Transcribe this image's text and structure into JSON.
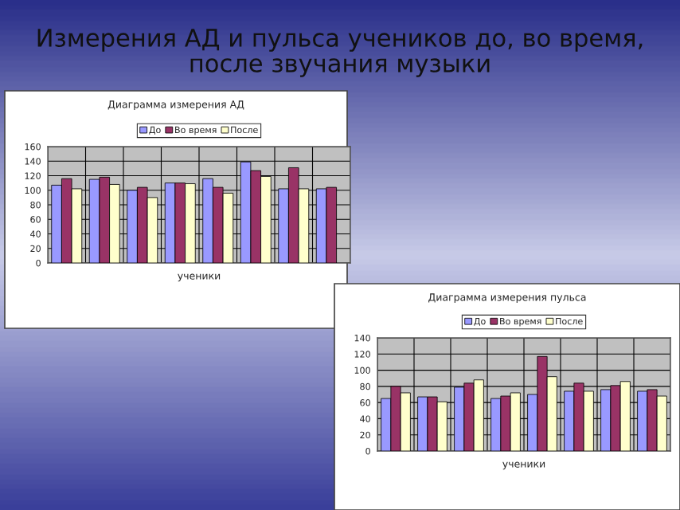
{
  "chart_data": [
    {
      "type": "bar",
      "title": "Диаграмма измерения АД",
      "xlabel": "ученики",
      "annotations": [
        "Измерения АД и пульса учеников до, во время,\nпосле звучания музыки"
      ],
      "categories": [
        null,
        null,
        null,
        null,
        null,
        null,
        null,
        null
      ],
      "series": [
        {
          "name": "До",
          "color": "#9999ff",
          "values": [
            107,
            115,
            100,
            110,
            116,
            139,
            102,
            102
          ]
        },
        {
          "name": "Во время",
          "color": "#993366",
          "values": [
            116,
            118,
            104,
            110,
            104,
            127,
            131,
            104
          ]
        },
        {
          "name": "После",
          "color": "#ffffcc",
          "values": [
            102,
            108,
            90,
            109,
            96,
            119,
            102,
            null
          ]
        }
      ],
      "ylim": [
        0,
        160
      ],
      "yticks": [
        0,
        20,
        40,
        60,
        80,
        100,
        120,
        140,
        160
      ],
      "grid": true,
      "legend": "top"
    },
    {
      "type": "bar",
      "title": "Диаграмма измерения пульса",
      "xlabel": "ученики",
      "categories": [
        null,
        null,
        null,
        null,
        null,
        null,
        null,
        null
      ],
      "series": [
        {
          "name": "До",
          "color": "#9999ff",
          "values": [
            65,
            67,
            79,
            65,
            70,
            74,
            76,
            74
          ]
        },
        {
          "name": "Во время",
          "color": "#993366",
          "values": [
            80,
            67,
            84,
            68,
            117,
            84,
            81,
            76
          ]
        },
        {
          "name": "После",
          "color": "#ffffcc",
          "values": [
            72,
            61,
            88,
            72,
            92,
            74,
            86,
            68
          ]
        }
      ],
      "ylim": [
        0,
        140
      ],
      "yticks": [
        0,
        20,
        40,
        60,
        80,
        100,
        120,
        140
      ],
      "grid": true,
      "legend": "top"
    }
  ]
}
